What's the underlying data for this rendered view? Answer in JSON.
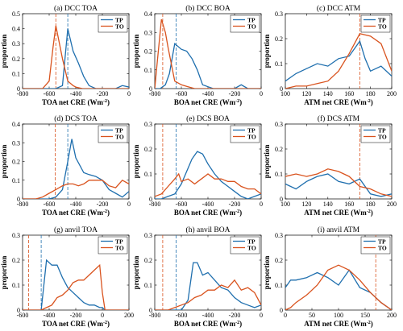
{
  "colors": {
    "TP": "#1f6fae",
    "TO": "#d9531e"
  },
  "chart_data": [
    {
      "type": "line",
      "title": "(a) DCC TOA",
      "xlabel": "TOA net CRE (Wm",
      "xlabel_sup": "-2",
      "xlabel_end": ")",
      "ylabel": "proportion",
      "xlim": [
        -800,
        0
      ],
      "ylim": [
        0,
        0.5
      ],
      "xticks": [
        -800,
        -600,
        -400,
        -200,
        0
      ],
      "yticks": [
        0,
        0.1,
        0.2,
        0.3,
        0.4,
        0.5
      ],
      "vlines": {
        "TP": -460,
        "TO": -550
      },
      "series": [
        {
          "name": "TP",
          "x": [
            -800,
            -750,
            -700,
            -650,
            -600,
            -550,
            -500,
            -460,
            -420,
            -380,
            -340,
            -300,
            -250,
            -200,
            -150,
            -100,
            -50,
            0
          ],
          "y": [
            0,
            0,
            0,
            0,
            0,
            0,
            0.02,
            0.4,
            0.25,
            0.17,
            0.08,
            0.02,
            0,
            0,
            0,
            0,
            0.02,
            0.01
          ]
        },
        {
          "name": "TO",
          "x": [
            -800,
            -750,
            -700,
            -650,
            -600,
            -570,
            -550,
            -500,
            -460,
            -420,
            -400,
            -350,
            -300,
            -200,
            -100,
            0
          ],
          "y": [
            0,
            0,
            0,
            0,
            0.05,
            0.28,
            0.42,
            0.2,
            0.05,
            0.02,
            0.01,
            0,
            0,
            0,
            0,
            0
          ]
        }
      ]
    },
    {
      "type": "line",
      "title": "(b) DCC BOA",
      "xlabel": "BOA net CRE (Wm",
      "xlabel_sup": "-2",
      "xlabel_end": ")",
      "ylabel": "proportion",
      "xlim": [
        -800,
        0
      ],
      "ylim": [
        0,
        0.4
      ],
      "xticks": [
        -800,
        -600,
        -400,
        -200,
        0
      ],
      "yticks": [
        0,
        0.1,
        0.2,
        0.3,
        0.4
      ],
      "vlines": {
        "TP": -640,
        "TO": -740
      },
      "series": [
        {
          "name": "TP",
          "x": [
            -800,
            -760,
            -720,
            -690,
            -650,
            -600,
            -560,
            -520,
            -480,
            -440,
            -400,
            -360,
            -300,
            -200,
            -150,
            -100,
            -50,
            0
          ],
          "y": [
            0,
            0,
            0.02,
            0.08,
            0.24,
            0.21,
            0.2,
            0.16,
            0.1,
            0.02,
            0.01,
            0,
            0,
            0,
            0.02,
            0,
            0,
            0
          ]
        },
        {
          "name": "TO",
          "x": [
            -800,
            -780,
            -750,
            -720,
            -700,
            -650,
            -600,
            -550,
            -500,
            -400,
            -300,
            -200,
            -100,
            0
          ],
          "y": [
            0,
            0.15,
            0.37,
            0.3,
            0.22,
            0.04,
            0.02,
            0.01,
            0,
            0,
            0,
            0,
            0,
            0
          ]
        }
      ]
    },
    {
      "type": "line",
      "title": "(c) DCC ATM",
      "xlabel": "ATM net CRE (Wm",
      "xlabel_sup": "-2",
      "xlabel_end": ")",
      "ylabel": "proportion",
      "xlim": [
        100,
        200
      ],
      "ylim": [
        0,
        0.3
      ],
      "xticks": [
        100,
        120,
        140,
        160,
        180,
        200
      ],
      "yticks": [
        0,
        0.1,
        0.2,
        0.3
      ],
      "vlines": {
        "TO": 170
      },
      "series": [
        {
          "name": "TP",
          "x": [
            100,
            110,
            120,
            130,
            140,
            150,
            160,
            170,
            175,
            180,
            190,
            200
          ],
          "y": [
            0.03,
            0.06,
            0.08,
            0.1,
            0.09,
            0.12,
            0.13,
            0.19,
            0.12,
            0.07,
            0.09,
            0.05
          ]
        },
        {
          "name": "TO",
          "x": [
            100,
            110,
            120,
            130,
            140,
            150,
            160,
            170,
            180,
            190,
            200
          ],
          "y": [
            0,
            0.01,
            0.01,
            0.02,
            0.03,
            0.07,
            0.14,
            0.22,
            0.21,
            0.18,
            0.07
          ]
        }
      ]
    },
    {
      "type": "line",
      "title": "(d) DCS TOA",
      "xlabel": "TOA net CRE (Wm",
      "xlabel_sup": "-2",
      "xlabel_end": ")",
      "ylabel": "proportion",
      "xlim": [
        -800,
        0
      ],
      "ylim": [
        0,
        0.4
      ],
      "xticks": [
        -800,
        -600,
        -400,
        -200,
        0
      ],
      "yticks": [
        0,
        0.1,
        0.2,
        0.3,
        0.4
      ],
      "vlines": {
        "TP": -460,
        "TO": -555
      },
      "series": [
        {
          "name": "TP",
          "x": [
            -800,
            -700,
            -600,
            -550,
            -500,
            -460,
            -430,
            -400,
            -340,
            -300,
            -250,
            -200,
            -150,
            -100,
            -50,
            0
          ],
          "y": [
            0,
            0,
            0,
            0.01,
            0.05,
            0.2,
            0.32,
            0.22,
            0.14,
            0.13,
            0.12,
            0.1,
            0.05,
            0.03,
            0.01,
            0.04
          ]
        },
        {
          "name": "TO",
          "x": [
            -800,
            -700,
            -650,
            -600,
            -550,
            -500,
            -460,
            -420,
            -380,
            -340,
            -300,
            -250,
            -200,
            -150,
            -100,
            -50,
            0
          ],
          "y": [
            0,
            0,
            0.01,
            0.03,
            0.05,
            0.07,
            0.08,
            0.08,
            0.07,
            0.08,
            0.1,
            0.1,
            0.1,
            0.07,
            0.06,
            0.1,
            0.08
          ]
        }
      ]
    },
    {
      "type": "line",
      "title": "(e) DCS BOA",
      "xlabel": "BOA net CRE (Wm",
      "xlabel_sup": "-2",
      "xlabel_end": ")",
      "ylabel": "proportion",
      "xlim": [
        -800,
        0
      ],
      "ylim": [
        0,
        0.3
      ],
      "xticks": [
        -800,
        -600,
        -400,
        -200,
        0
      ],
      "yticks": [
        0,
        0.1,
        0.2,
        0.3
      ],
      "vlines": {
        "TP": -640,
        "TO": -740
      },
      "series": [
        {
          "name": "TP",
          "x": [
            -800,
            -750,
            -700,
            -650,
            -600,
            -560,
            -520,
            -480,
            -440,
            -400,
            -350,
            -300,
            -250,
            -200,
            -150,
            -100,
            -50,
            0
          ],
          "y": [
            0,
            0,
            0.01,
            0.02,
            0.06,
            0.11,
            0.16,
            0.19,
            0.18,
            0.14,
            0.1,
            0.07,
            0.05,
            0.03,
            0.01,
            0,
            0.01,
            0.02
          ]
        },
        {
          "name": "TO",
          "x": [
            -800,
            -750,
            -700,
            -650,
            -620,
            -600,
            -550,
            -500,
            -450,
            -400,
            -350,
            -300,
            -250,
            -200,
            -150,
            -100,
            -50,
            0
          ],
          "y": [
            0.01,
            0.02,
            0.05,
            0.08,
            0.1,
            0.07,
            0.08,
            0.06,
            0.08,
            0.1,
            0.08,
            0.08,
            0.07,
            0.07,
            0.05,
            0.04,
            0.04,
            0.02
          ]
        }
      ]
    },
    {
      "type": "line",
      "title": "(f) DCS ATM",
      "xlabel": "ATM net CRE (Wm",
      "xlabel_sup": "-2",
      "xlabel_end": ")",
      "ylabel": "proportion",
      "xlim": [
        100,
        200
      ],
      "ylim": [
        0,
        0.3
      ],
      "xticks": [
        100,
        120,
        140,
        160,
        180,
        200
      ],
      "yticks": [
        0,
        0.1,
        0.2,
        0.3
      ],
      "vlines": {
        "TO": 170
      },
      "series": [
        {
          "name": "TP",
          "x": [
            100,
            110,
            120,
            130,
            140,
            150,
            160,
            170,
            180,
            190,
            200
          ],
          "y": [
            0.06,
            0.04,
            0.07,
            0.09,
            0.1,
            0.07,
            0.06,
            0.08,
            0.02,
            0.01,
            0.02
          ]
        },
        {
          "name": "TO",
          "x": [
            100,
            110,
            120,
            130,
            140,
            150,
            160,
            170,
            180,
            190,
            200
          ],
          "y": [
            0.09,
            0.1,
            0.09,
            0.1,
            0.12,
            0.11,
            0.09,
            0.05,
            0.04,
            0.02,
            0.01
          ]
        }
      ]
    },
    {
      "type": "line",
      "title": "(g) anvil TOA",
      "xlabel": "TOA net CRE (Wm",
      "xlabel_sup": "-2",
      "xlabel_end": ")",
      "ylabel": "proportion",
      "xlim": [
        -600,
        200
      ],
      "ylim": [
        0,
        0.3
      ],
      "xticks": [
        -600,
        -400,
        -200,
        0,
        200
      ],
      "yticks": [
        0,
        0.1,
        0.2,
        0.3
      ],
      "vlines": {
        "TP": -460,
        "TO": -555
      },
      "series": [
        {
          "name": "TP",
          "x": [
            -600,
            -550,
            -500,
            -460,
            -420,
            -380,
            -340,
            -300,
            -260,
            -220,
            -180,
            -140,
            -100,
            -60,
            -20,
            0,
            20,
            60,
            100,
            150,
            200
          ],
          "y": [
            0,
            0,
            0,
            0,
            0.2,
            0.18,
            0.18,
            0.13,
            0.09,
            0.07,
            0.05,
            0.03,
            0.02,
            0.02,
            0.01,
            0.01,
            0,
            0,
            0,
            0,
            0
          ]
        },
        {
          "name": "TO",
          "x": [
            -600,
            -550,
            -500,
            -460,
            -420,
            -380,
            -340,
            -300,
            -260,
            -220,
            -180,
            -140,
            -100,
            -60,
            -20,
            0,
            20,
            60,
            100,
            150,
            200
          ],
          "y": [
            0,
            0,
            0,
            0,
            0.01,
            0.02,
            0.05,
            0.06,
            0.08,
            0.11,
            0.12,
            0.12,
            0.14,
            0.16,
            0.18,
            0.07,
            0,
            0,
            0,
            0,
            0
          ]
        }
      ]
    },
    {
      "type": "line",
      "title": "(h) anvil BOA",
      "xlabel": "BOA net CRE (Wm",
      "xlabel_sup": "-2",
      "xlabel_end": ")",
      "ylabel": "proportion",
      "xlim": [
        -800,
        0
      ],
      "ylim": [
        0,
        0.3
      ],
      "xticks": [
        -800,
        -600,
        -400,
        -200,
        0
      ],
      "yticks": [
        0,
        0.1,
        0.2,
        0.3
      ],
      "vlines": {
        "TP": -640,
        "TO": -740
      },
      "series": [
        {
          "name": "TP",
          "x": [
            -800,
            -700,
            -650,
            -600,
            -550,
            -510,
            -480,
            -440,
            -400,
            -350,
            -300,
            -250,
            -200,
            -150,
            -100,
            -50,
            0
          ],
          "y": [
            0,
            0,
            0,
            0,
            0.04,
            0.19,
            0.19,
            0.14,
            0.15,
            0.12,
            0.09,
            0.08,
            0.05,
            0.03,
            0.02,
            0.01,
            0.02
          ]
        },
        {
          "name": "TO",
          "x": [
            -800,
            -700,
            -650,
            -600,
            -550,
            -500,
            -450,
            -400,
            -350,
            -300,
            -250,
            -200,
            -150,
            -100,
            -50,
            0
          ],
          "y": [
            0,
            0,
            0.01,
            0.02,
            0.03,
            0.05,
            0.06,
            0.08,
            0.08,
            0.1,
            0.09,
            0.12,
            0.08,
            0.09,
            0.07,
            0.02
          ]
        }
      ]
    },
    {
      "type": "line",
      "title": "(i) anvil ATM",
      "xlabel": "ATM net CRE (Wm",
      "xlabel_sup": "-2",
      "xlabel_end": ")",
      "ylabel": "proportion",
      "xlim": [
        0,
        200
      ],
      "ylim": [
        0,
        0.3
      ],
      "xticks": [
        0,
        50,
        100,
        150,
        200
      ],
      "yticks": [
        0,
        0.1,
        0.2,
        0.3
      ],
      "vlines": {
        "TO": 170
      },
      "series": [
        {
          "name": "TP",
          "x": [
            0,
            10,
            20,
            40,
            60,
            80,
            100,
            120,
            140,
            160,
            180,
            200
          ],
          "y": [
            0.09,
            0.12,
            0.12,
            0.13,
            0.15,
            0.13,
            0.1,
            0.16,
            0.09,
            0.07,
            0.03,
            0
          ]
        },
        {
          "name": "TO",
          "x": [
            0,
            10,
            20,
            40,
            60,
            80,
            100,
            120,
            140,
            160,
            170,
            180,
            200
          ],
          "y": [
            0,
            0.01,
            0.03,
            0.06,
            0.1,
            0.16,
            0.18,
            0.16,
            0.12,
            0.07,
            0.05,
            0.03,
            0
          ]
        }
      ]
    }
  ]
}
